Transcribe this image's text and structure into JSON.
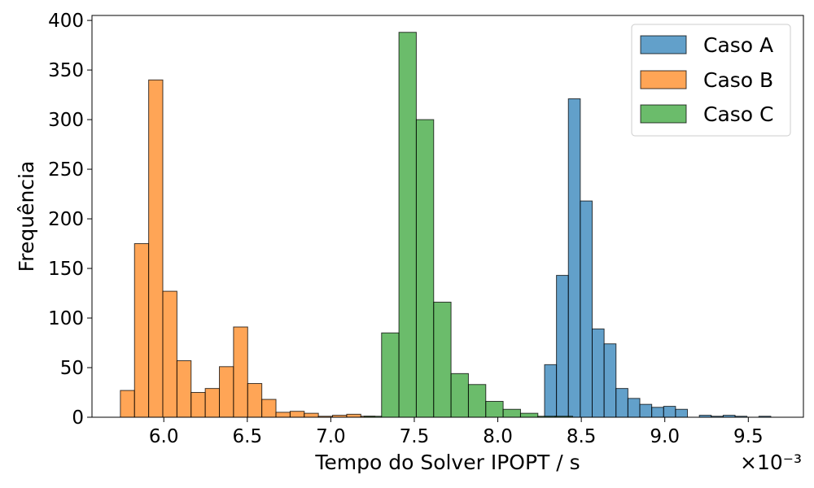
{
  "chart_data": {
    "type": "histogram",
    "xlabel": "Tempo do Solver IPOPT / s",
    "ylabel": "Frequência",
    "x_offset_label": "×10⁻³",
    "xlim": [
      5.57,
      9.83
    ],
    "ylim": [
      0,
      405
    ],
    "xticks": [
      {
        "value": 6.0,
        "label": "6.0"
      },
      {
        "value": 6.5,
        "label": "6.5"
      },
      {
        "value": 7.0,
        "label": "7.0"
      },
      {
        "value": 7.5,
        "label": "7.5"
      },
      {
        "value": 8.0,
        "label": "8.0"
      },
      {
        "value": 8.5,
        "label": "8.5"
      },
      {
        "value": 9.0,
        "label": "9.0"
      },
      {
        "value": 9.5,
        "label": "9.5"
      }
    ],
    "yticks": [
      {
        "value": 0,
        "label": "0"
      },
      {
        "value": 50,
        "label": "50"
      },
      {
        "value": 100,
        "label": "100"
      },
      {
        "value": 150,
        "label": "150"
      },
      {
        "value": 200,
        "label": "200"
      },
      {
        "value": 250,
        "label": "250"
      },
      {
        "value": 300,
        "label": "300"
      },
      {
        "value": 350,
        "label": "350"
      },
      {
        "value": 400,
        "label": "400"
      }
    ],
    "legend_position": "top-right",
    "series": [
      {
        "name": "Caso A",
        "color": "#1f77b4",
        "bin_start": 8.28,
        "bin_width": 0.0713,
        "counts": [
          53,
          143,
          321,
          218,
          89,
          74,
          29,
          19,
          13,
          10,
          11,
          8,
          0,
          2,
          1,
          2,
          1,
          0,
          1,
          0,
          0
        ]
      },
      {
        "name": "Caso B",
        "color": "#ff7f0e",
        "bin_start": 5.74,
        "bin_width": 0.0847,
        "counts": [
          27,
          175,
          340,
          127,
          57,
          25,
          29,
          51,
          91,
          34,
          18,
          5,
          6,
          4,
          1,
          2,
          3,
          1,
          0,
          0
        ]
      },
      {
        "name": "Caso C",
        "color": "#2ca02c",
        "bin_start": 7.2,
        "bin_width": 0.104,
        "counts": [
          1,
          85,
          388,
          300,
          116,
          44,
          33,
          16,
          8,
          4,
          1,
          1
        ]
      }
    ]
  }
}
